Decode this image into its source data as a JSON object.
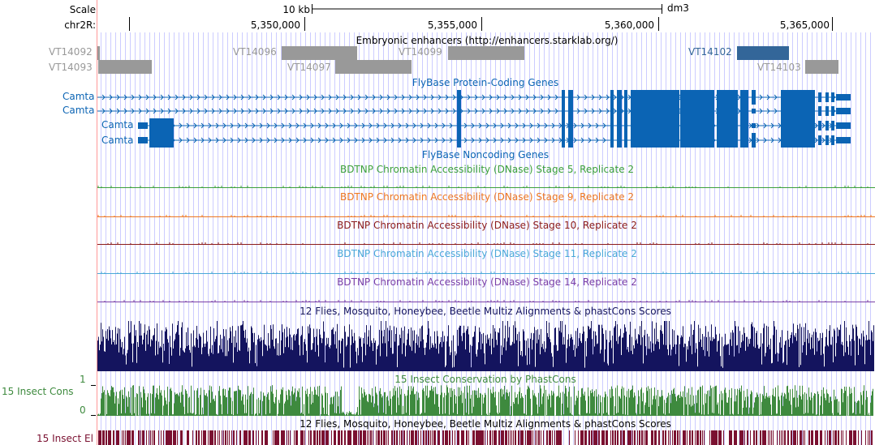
{
  "ruler": {
    "scale_label": "Scale",
    "chrom_label": "chr2R:",
    "scale_bar_text": "10 kb",
    "assembly": "dm3",
    "ticks": [
      "5,350,000",
      "5,355,000",
      "5,360,000",
      "5,365,000"
    ]
  },
  "colors": {
    "guide": "#ccccff",
    "enhancer_gray": "#999999",
    "enhancer_blue": "#336699",
    "gene_blue": "#0b64b4",
    "stage5": "#3ca03c",
    "stage9": "#ee7722",
    "stage10": "#8b1a1a",
    "stage11": "#4aa8d8",
    "stage14": "#7a3fa6",
    "multiz": "#14145e",
    "phastcons": "#3e8a3e",
    "elements": "#7a1030",
    "left_edge": "#ff9999"
  },
  "enhancers": {
    "title": "Embryonic enhancers (http://enhancers.starklab.org/)",
    "items": [
      {
        "label": "VT14092",
        "color": "gray"
      },
      {
        "label": "VT14093",
        "color": "gray"
      },
      {
        "label": "VT14096",
        "color": "gray"
      },
      {
        "label": "VT14097",
        "color": "gray"
      },
      {
        "label": "VT14099",
        "color": "gray"
      },
      {
        "label": "VT14102",
        "color": "blue"
      },
      {
        "label": "VT14103",
        "color": "gray"
      }
    ]
  },
  "genes": {
    "title": "FlyBase Protein-Coding Genes",
    "transcripts": [
      "Camta",
      "Camta",
      "Camta",
      "Camta"
    ]
  },
  "noncoding": {
    "title": "FlyBase Noncoding Genes"
  },
  "dnase": [
    {
      "title": "BDTNP Chromatin Accessibility (DNase) Stage 5, Replicate 2",
      "color_key": "stage5"
    },
    {
      "title": "BDTNP Chromatin Accessibility (DNase) Stage 9, Replicate 2",
      "color_key": "stage9"
    },
    {
      "title": "BDTNP Chromatin Accessibility (DNase) Stage 10, Replicate 2",
      "color_key": "stage10"
    },
    {
      "title": "BDTNP Chromatin Accessibility (DNase) Stage 11, Replicate 2",
      "color_key": "stage11"
    },
    {
      "title": "BDTNP Chromatin Accessibility (DNase) Stage 14, Replicate 2",
      "color_key": "stage14"
    }
  ],
  "multiz": {
    "title": "12 Flies, Mosquito, Honeybee, Beetle Multiz Alignments & phastCons Scores"
  },
  "phastcons": {
    "title": "15 Insect Conservation by PhastCons",
    "side_label": "15 Insect Cons",
    "axis_max": "1",
    "axis_min": "0"
  },
  "elements": {
    "title": "12 Flies, Mosquito, Honeybee, Beetle Multiz Alignments & phastCons Scores",
    "side_label": "15 Insect El"
  }
}
